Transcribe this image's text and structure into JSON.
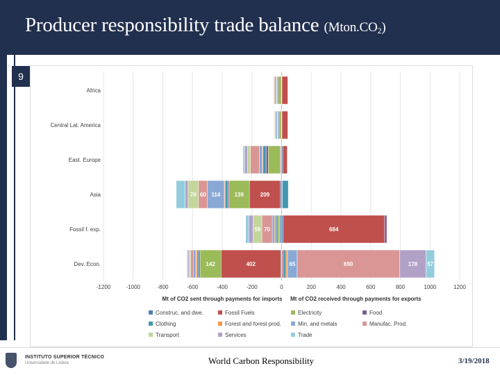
{
  "slide": {
    "title": "Producer responsibility trade balance",
    "title_unit_main": "(Mton.CO",
    "title_unit_sub": "2",
    "title_unit_end": ")",
    "slide_number": "9",
    "footer_center": "World Carbon Responsibility",
    "footer_date": "3/19/2018",
    "logo_line1": "INSTITUTO SUPERIOR TÉCNICO",
    "logo_line2": "Universidade de Lisboa",
    "colors": {
      "title_bar": "#22304f"
    }
  },
  "chart_data": {
    "type": "bar",
    "orientation": "horizontal",
    "stacked": "diverging",
    "title": "",
    "categories": [
      "Africa",
      "Central Lat. America",
      "East. Europe",
      "Asia",
      "Fossil f. exp.",
      "Dev. Econ."
    ],
    "xlim": [
      -1200,
      1200
    ],
    "xticks": [
      -1200,
      -1000,
      -800,
      -600,
      -400,
      -200,
      0,
      200,
      400,
      600,
      800,
      1000,
      1200
    ],
    "xlabel_left": "Mt of CO2 sent through payments for imports",
    "xlabel_right": "Mt of CO2 received through payments for exports",
    "legend_position": "bottom",
    "grid": true,
    "series": [
      {
        "name": "Construc. and dwe.",
        "color": "#4e7fb5",
        "values_neg": [
          -2,
          -2,
          -5,
          -8,
          -10,
          -6
        ],
        "values_pos": [
          2,
          2,
          8,
          5,
          10,
          5
        ]
      },
      {
        "name": "Fossil Fuels",
        "color": "#c0504d",
        "values_neg": [
          0,
          0,
          -5,
          -209,
          -5,
          -402
        ],
        "values_pos": [
          40,
          40,
          30,
          0,
          684,
          10
        ]
      },
      {
        "name": "Electricity",
        "color": "#9bbb59",
        "values_neg": [
          -20,
          -15,
          -80,
          -139,
          -10,
          -142
        ],
        "values_pos": [
          0,
          0,
          0,
          0,
          0,
          0
        ]
      },
      {
        "name": "Food",
        "color": "#7b5e94",
        "values_neg": [
          -5,
          -5,
          -15,
          -10,
          -8,
          -10
        ],
        "values_pos": [
          0,
          0,
          0,
          0,
          15,
          0
        ]
      },
      {
        "name": "Clothing",
        "color": "#4198af",
        "values_neg": [
          -5,
          -5,
          -20,
          -15,
          -10,
          -10
        ],
        "values_pos": [
          0,
          0,
          0,
          40,
          0,
          15
        ]
      },
      {
        "name": "Forest and forest prod.",
        "color": "#f79646",
        "values_neg": [
          -3,
          -3,
          -5,
          -5,
          -5,
          -8
        ],
        "values_pos": [
          0,
          0,
          0,
          0,
          0,
          10
        ]
      },
      {
        "name": "Min. and metals",
        "color": "#8aa8d6",
        "values_neg": [
          -10,
          -10,
          -20,
          -114,
          -15,
          -15
        ],
        "values_pos": [
          0,
          0,
          0,
          0,
          0,
          65
        ]
      },
      {
        "name": "Manufac. Prod.",
        "color": "#d99694",
        "values_neg": [
          -5,
          -5,
          -60,
          -60,
          -70,
          -20
        ],
        "values_pos": [
          0,
          0,
          0,
          0,
          0,
          690
        ]
      },
      {
        "name": "Transport",
        "color": "#c3d69b",
        "values_neg": [
          -5,
          -5,
          -20,
          -70,
          -59,
          -10
        ],
        "values_pos": [
          0,
          0,
          0,
          0,
          0,
          0
        ]
      },
      {
        "name": "Services",
        "color": "#b2a1c7",
        "values_neg": [
          -3,
          -3,
          -20,
          -20,
          -30,
          -10
        ],
        "values_pos": [
          0,
          0,
          0,
          0,
          0,
          178
        ]
      },
      {
        "name": "Trade",
        "color": "#93cddd",
        "values_neg": [
          -2,
          -2,
          -10,
          -60,
          -20,
          -5
        ],
        "values_pos": [
          0,
          0,
          0,
          0,
          0,
          57
        ]
      }
    ],
    "data_labels": [
      {
        "category": "Asia",
        "series": "Transport",
        "text": "70"
      },
      {
        "category": "Asia",
        "series": "Manufac. Prod.",
        "text": "60"
      },
      {
        "category": "Asia",
        "series": "Min. and metals",
        "text": "114"
      },
      {
        "category": "Asia",
        "series": "Electricity",
        "text": "139"
      },
      {
        "category": "Asia",
        "series": "Fossil Fuels",
        "text": "209"
      },
      {
        "category": "Fossil f. exp.",
        "series": "Transport",
        "text": "59"
      },
      {
        "category": "Fossil f. exp.",
        "series": "Manufac. Prod.",
        "text": "70"
      },
      {
        "category": "Fossil f. exp.",
        "series": "Fossil Fuels",
        "text": "684"
      },
      {
        "category": "Dev. Econ.",
        "series": "Electricity",
        "text": "142"
      },
      {
        "category": "Dev. Econ.",
        "series": "Fossil Fuels",
        "text": "402"
      },
      {
        "category": "Dev. Econ.",
        "series": "Min. and metals",
        "text": "65"
      },
      {
        "category": "Dev. Econ.",
        "series": "Manufac. Prod.",
        "text": "690"
      },
      {
        "category": "Dev. Econ.",
        "series": "Services",
        "text": "178"
      },
      {
        "category": "Dev. Econ.",
        "series": "Trade",
        "text": "57"
      }
    ]
  }
}
